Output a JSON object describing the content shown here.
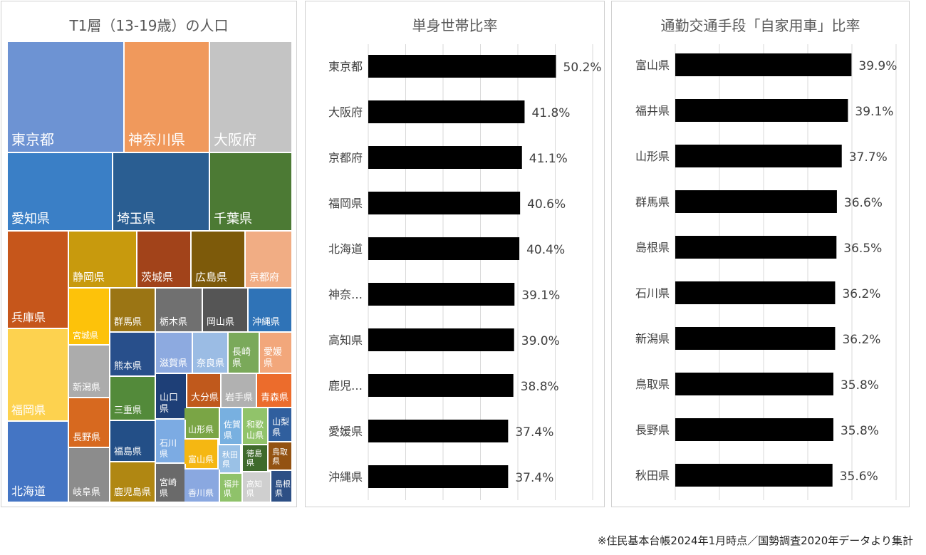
{
  "footnote": "※住民基本台帳2024年1月時点／国勢調査2020年データより集計",
  "chart_data": [
    {
      "type": "treemap",
      "title": "T1層（13-19歳）の人口",
      "tiles": [
        {
          "label": "東京都",
          "color": "#6d93d3"
        },
        {
          "label": "神奈川県",
          "color": "#f0995c"
        },
        {
          "label": "大阪府",
          "color": "#c4c4c4"
        },
        {
          "label": "愛知県",
          "color": "#3a7fc6"
        },
        {
          "label": "埼玉県",
          "color": "#2a5e92"
        },
        {
          "label": "千葉県",
          "color": "#4c7a34"
        },
        {
          "label": "兵庫県",
          "color": "#c6561b"
        },
        {
          "label": "静岡県",
          "color": "#c89a0d"
        },
        {
          "label": "茨城県",
          "color": "#a2431a"
        },
        {
          "label": "広島県",
          "color": "#7d5a0a"
        },
        {
          "label": "京都府",
          "color": "#f1ad84"
        },
        {
          "label": "宮城県",
          "color": "#fdc20a"
        },
        {
          "label": "群馬県",
          "color": "#9b7514"
        },
        {
          "label": "栃木県",
          "color": "#707070"
        },
        {
          "label": "岡山県",
          "color": "#555555"
        },
        {
          "label": "沖縄県",
          "color": "#2f73b7"
        },
        {
          "label": "福岡県",
          "color": "#fdd24f"
        },
        {
          "label": "熊本県",
          "color": "#284f8b"
        },
        {
          "label": "滋賀県",
          "color": "#8daae0"
        },
        {
          "label": "奈良県",
          "color": "#9bbce4"
        },
        {
          "label": "長崎県",
          "color": "#7aa95a"
        },
        {
          "label": "愛媛県",
          "color": "#f2a77b"
        },
        {
          "label": "新潟県",
          "color": "#acacac"
        },
        {
          "label": "三重県",
          "color": "#538a3a"
        },
        {
          "label": "山口県",
          "color": "#1e3f77"
        },
        {
          "label": "大分県",
          "color": "#c0591c"
        },
        {
          "label": "岩手県",
          "color": "#b1b1b1"
        },
        {
          "label": "青森県",
          "color": "#ec6c2c"
        },
        {
          "label": "長野県",
          "color": "#d7691f"
        },
        {
          "label": "山形県",
          "color": "#7aa545"
        },
        {
          "label": "佐賀県",
          "color": "#78b0e0"
        },
        {
          "label": "和歌山県",
          "color": "#91c36a"
        },
        {
          "label": "山梨県",
          "color": "#305f9e"
        },
        {
          "label": "北海道",
          "color": "#4475c4"
        },
        {
          "label": "福島県",
          "color": "#234f87"
        },
        {
          "label": "石川県",
          "color": "#7cabe3"
        },
        {
          "label": "富山県",
          "color": "#f5b712"
        },
        {
          "label": "秋田県",
          "color": "#9ac1e6"
        },
        {
          "label": "徳島県",
          "color": "#3f6a2c"
        },
        {
          "label": "鳥取県",
          "color": "#935212"
        },
        {
          "label": "岐阜県",
          "color": "#8c8c8c"
        },
        {
          "label": "鹿児島県",
          "color": "#b08712"
        },
        {
          "label": "宮崎県",
          "color": "#6a6a6a"
        },
        {
          "label": "香川県",
          "color": "#8aa8e0"
        },
        {
          "label": "福井県",
          "color": "#8fc26a"
        },
        {
          "label": "高知県",
          "color": "#cfcfcf"
        },
        {
          "label": "島根県",
          "color": "#2d4f85"
        }
      ]
    },
    {
      "type": "bar",
      "orientation": "horizontal",
      "title": "単身世帯比率",
      "categories": [
        "東京都",
        "大阪府",
        "京都府",
        "福岡県",
        "北海道",
        "神奈…",
        "高知県",
        "鹿児…",
        "愛媛県",
        "沖縄県"
      ],
      "values": [
        50.2,
        41.8,
        41.1,
        40.6,
        40.4,
        39.1,
        39.0,
        38.8,
        37.4,
        37.4
      ],
      "labels": [
        "50.2%",
        "41.8%",
        "41.1%",
        "40.6%",
        "40.4%",
        "39.1%",
        "39.0%",
        "38.8%",
        "37.4%",
        "37.4%"
      ],
      "xlim": [
        0,
        60
      ],
      "bar_color": "#000000"
    },
    {
      "type": "bar",
      "orientation": "horizontal",
      "title": "通勤交通手段「自家用車」比率",
      "categories": [
        "富山県",
        "福井県",
        "山形県",
        "群馬県",
        "島根県",
        "石川県",
        "新潟県",
        "鳥取県",
        "長野県",
        "秋田県"
      ],
      "values": [
        39.9,
        39.1,
        37.7,
        36.6,
        36.5,
        36.2,
        36.2,
        35.8,
        35.8,
        35.6
      ],
      "labels": [
        "39.9%",
        "39.1%",
        "37.7%",
        "36.6%",
        "36.5%",
        "36.2%",
        "36.2%",
        "35.8%",
        "35.8%",
        "35.6%"
      ],
      "xlim": [
        0,
        50
      ],
      "bar_color": "#000000"
    }
  ]
}
